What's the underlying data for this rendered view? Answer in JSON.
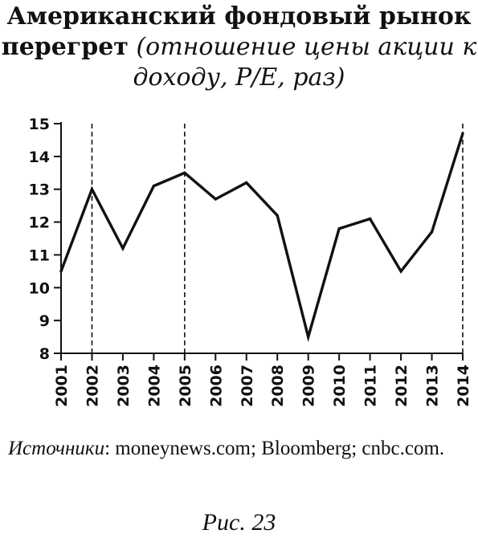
{
  "title": {
    "bold_part": "Американский фондовый рынок перегрет",
    "italic_part": "(отношение цены акции к доходу, P/E, раз)"
  },
  "source": {
    "label": "Источники",
    "text": ": moneynews.com; Bloomberg; cnbc.com."
  },
  "caption": "Рис. 23",
  "chart_data": {
    "type": "line",
    "title": "Американский фондовый рынок перегрет (отношение цены акции к доходу, P/E, раз)",
    "xlabel": "",
    "ylabel": "",
    "categories": [
      "2001",
      "2002",
      "2003",
      "2004",
      "2005",
      "2006",
      "2007",
      "2008",
      "2009",
      "2010",
      "2011",
      "2012",
      "2013",
      "2014"
    ],
    "values": [
      10.5,
      13.0,
      11.2,
      13.1,
      13.5,
      12.7,
      13.2,
      12.2,
      8.5,
      11.8,
      12.1,
      10.5,
      11.7,
      14.7
    ],
    "ylim": [
      8,
      15
    ],
    "yticks": [
      8,
      9,
      10,
      11,
      12,
      13,
      14,
      15
    ],
    "dashed_markers": [
      "2002",
      "2005",
      "2014"
    ],
    "grid": false,
    "legend": "none",
    "line_color": "#111111"
  }
}
